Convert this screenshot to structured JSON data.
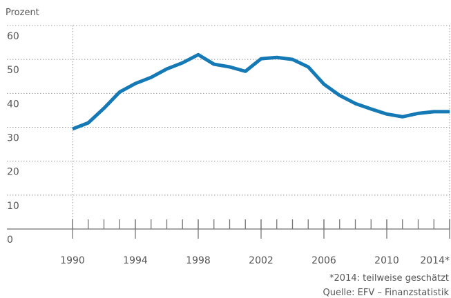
{
  "chart_data": {
    "type": "line",
    "y_label": "Prozent",
    "x": [
      1990,
      1991,
      1992,
      1993,
      1994,
      1995,
      1996,
      1997,
      1998,
      1999,
      2000,
      2001,
      2002,
      2003,
      2004,
      2005,
      2006,
      2007,
      2008,
      2009,
      2010,
      2011,
      2012,
      2013,
      2014
    ],
    "series": [
      {
        "name": "Prozent",
        "color": "#1479b4",
        "values": [
          29.5,
          31.3,
          35.6,
          40.4,
          42.9,
          44.7,
          47.2,
          49.0,
          51.4,
          48.6,
          47.8,
          46.5,
          50.2,
          50.6,
          50.0,
          47.8,
          42.7,
          39.4,
          37.0,
          35.4,
          33.9,
          33.1,
          34.1,
          34.6,
          34.6
        ]
      }
    ],
    "xlim": [
      1990,
      2014
    ],
    "xticks": [
      1990,
      1994,
      1998,
      2002,
      2006,
      2010,
      {
        "value": 2014,
        "label": "2014*"
      }
    ],
    "ylim": [
      0,
      60
    ],
    "yticks": [
      0,
      10,
      20,
      30,
      40,
      50,
      60
    ],
    "grid": true,
    "footnote": "*2014: teilweise geschätzt",
    "source": "Quelle: EFV – Finanzstatistik"
  }
}
